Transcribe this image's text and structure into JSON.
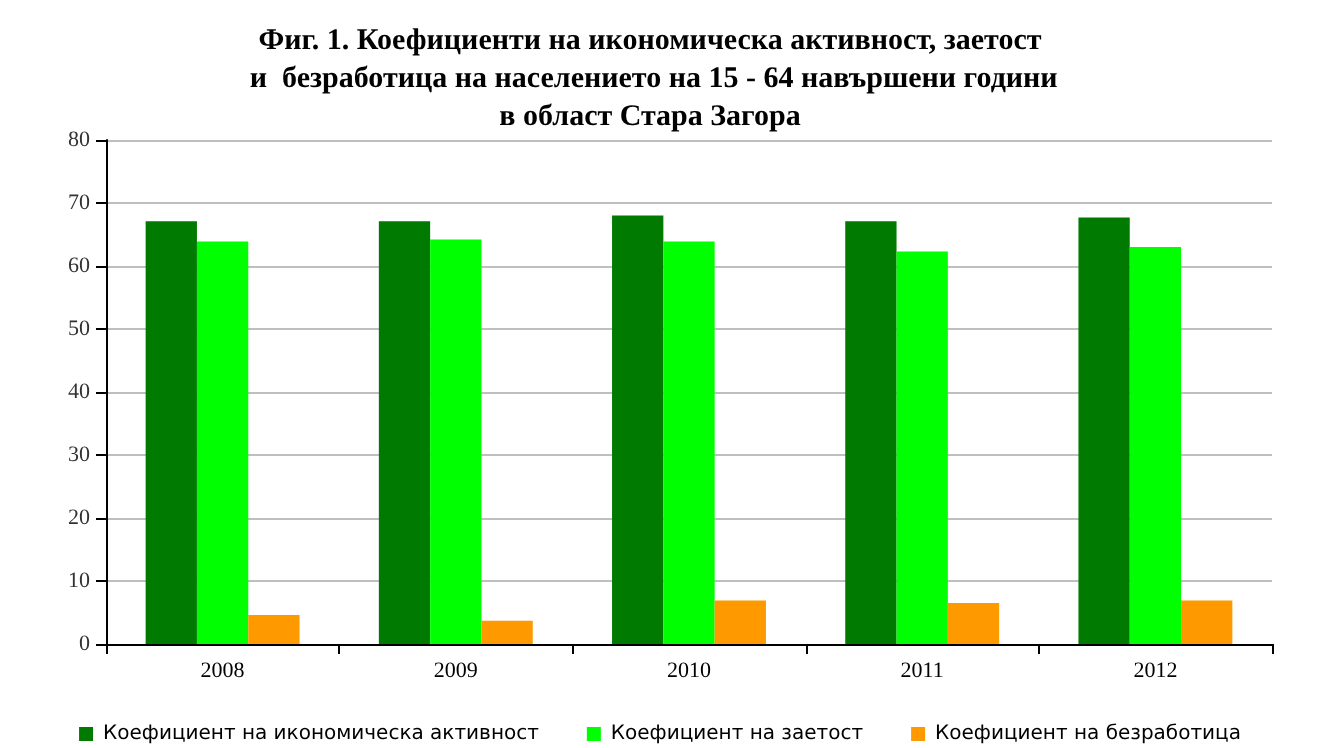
{
  "chart_data": {
    "type": "bar",
    "title": "Фиг. 1. Коефициенти на икономическа активност, заетост\n и  безработица на населението на 15 - 64 навършени години\nв област Стара Загора",
    "categories": [
      "2008",
      "2009",
      "2010",
      "2011",
      "2012"
    ],
    "series": [
      {
        "name": "Коефициент на икономическа активност",
        "color": "#007a00",
        "values": [
          67.1,
          67.1,
          68.0,
          67.1,
          67.7
        ]
      },
      {
        "name": "Коефициент на заетост",
        "color": "#00ff00",
        "values": [
          63.9,
          64.2,
          63.9,
          62.3,
          63.0
        ]
      },
      {
        "name": "Коефициент на безработица",
        "color": "#ff9900",
        "values": [
          4.6,
          3.7,
          6.9,
          6.5,
          6.9
        ]
      }
    ],
    "ylim": [
      0,
      80
    ],
    "yticks": [
      0,
      10,
      20,
      30,
      40,
      50,
      60,
      70,
      80
    ],
    "grid": "y",
    "legend": "bottom"
  }
}
